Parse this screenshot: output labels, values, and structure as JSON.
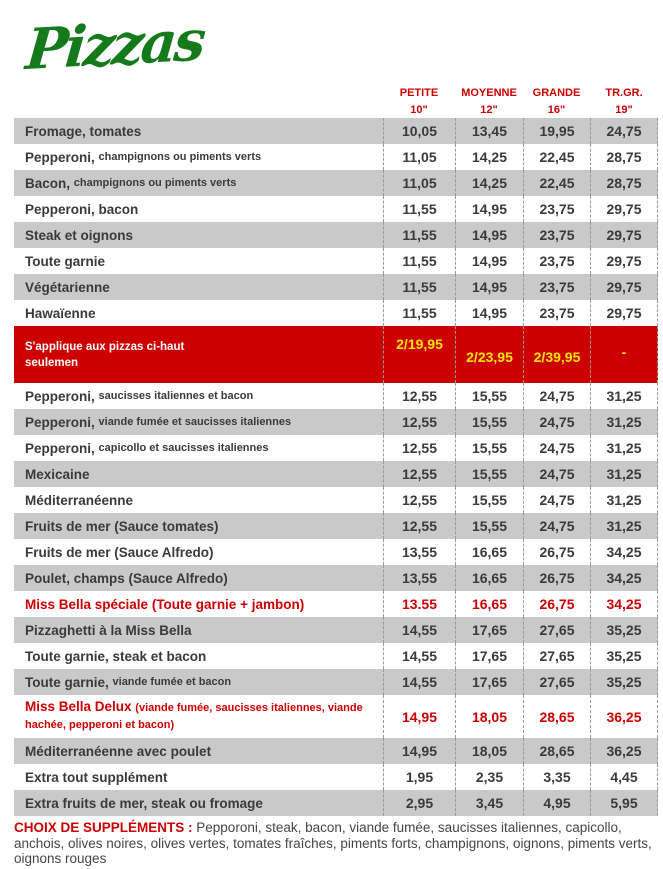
{
  "brand": {
    "logo_text": "Pizzas"
  },
  "colors": {
    "brand_green": "#157a1b",
    "accent_red": "#cc0000",
    "banner_yellow": "#ffe600",
    "row_gray": "#c9c9c9",
    "text_dark": "#3a3a3a"
  },
  "table": {
    "columns": [
      {
        "label": "PETITE",
        "size": "10\""
      },
      {
        "label": "MOYENNE",
        "size": "12\""
      },
      {
        "label": "GRANDE",
        "size": "16\""
      },
      {
        "label": "TR.GR.",
        "size": "19\""
      }
    ],
    "rows": [
      {
        "name": "Fromage, tomates",
        "desc": "",
        "prices": [
          "10,05",
          "13,45",
          "19,95",
          "24,75"
        ]
      },
      {
        "name": "Pepperoni, ",
        "desc": "champignons ou piments verts",
        "prices": [
          "11,05",
          "14,25",
          "22,45",
          "28,75"
        ]
      },
      {
        "name": "Bacon, ",
        "desc": "champignons ou piments verts",
        "prices": [
          "11,05",
          "14,25",
          "22,45",
          "28,75"
        ]
      },
      {
        "name": "Pepperoni, bacon",
        "desc": "",
        "prices": [
          "11,55",
          "14,95",
          "23,75",
          "29,75"
        ]
      },
      {
        "name": "Steak et oignons",
        "desc": "",
        "prices": [
          "11,55",
          "14,95",
          "23,75",
          "29,75"
        ]
      },
      {
        "name": "Toute garnie",
        "desc": "",
        "prices": [
          "11,55",
          "14,95",
          "23,75",
          "29,75"
        ]
      },
      {
        "name": "Végétarienne",
        "desc": "",
        "prices": [
          "11,55",
          "14,95",
          "23,75",
          "29,75"
        ]
      },
      {
        "name": "Hawaïenne",
        "desc": "",
        "prices": [
          "11,55",
          "14,95",
          "23,75",
          "29,75"
        ]
      },
      {
        "type": "banner",
        "line1": "S'applique aux pizzas ci-haut",
        "line2": "seulemen",
        "prices": [
          "2/19,95",
          "2/23,95",
          "2/39,95",
          "-"
        ]
      },
      {
        "name": "Pepperoni, ",
        "desc": "saucisses italiennes et bacon",
        "prices": [
          "12,55",
          "15,55",
          "24,75",
          "31,25"
        ]
      },
      {
        "name": "Pepperoni, ",
        "desc": "viande fumée et saucisses italiennes",
        "prices": [
          "12,55",
          "15,55",
          "24,75",
          "31,25"
        ]
      },
      {
        "name": "Pepperoni, ",
        "desc": "capicollo et saucisses italiennes",
        "prices": [
          "12,55",
          "15,55",
          "24,75",
          "31,25"
        ]
      },
      {
        "name": "Mexicaine",
        "desc": "",
        "prices": [
          "12,55",
          "15,55",
          "24,75",
          "31,25"
        ]
      },
      {
        "name": "Méditerranéenne",
        "desc": "",
        "prices": [
          "12,55",
          "15,55",
          "24,75",
          "31,25"
        ]
      },
      {
        "name": "Fruits de mer (Sauce tomates)",
        "desc": "",
        "prices": [
          "12,55",
          "15,55",
          "24,75",
          "31,25"
        ]
      },
      {
        "name": "Fruits de mer (Sauce Alfredo)",
        "desc": "",
        "prices": [
          "13,55",
          "16,65",
          "26,75",
          "34,25"
        ]
      },
      {
        "name": "Poulet, champs (Sauce Alfredo)",
        "desc": "",
        "prices": [
          "13,55",
          "16,65",
          "26,75",
          "34,25"
        ]
      },
      {
        "name": "Miss Bella spéciale (Toute garnie + jambon)",
        "desc": "",
        "red": true,
        "prices": [
          "13.55",
          "16,65",
          "26,75",
          "34,25"
        ]
      },
      {
        "name": "Pizzaghetti à la Miss Bella",
        "desc": "",
        "prices": [
          "14,55",
          "17,65",
          "27,65",
          "35,25"
        ]
      },
      {
        "name": "Toute garnie, steak et bacon",
        "desc": "",
        "prices": [
          "14,55",
          "17,65",
          "27,65",
          "35,25"
        ]
      },
      {
        "name": "Toute garnie, ",
        "desc": "viande fumée et bacon",
        "prices": [
          "14,55",
          "17,65",
          "27,65",
          "35,25"
        ]
      },
      {
        "name": "Miss Bella Delux ",
        "desc": "(viande fumée, saucisses italiennes, viande hachée, pepperoni et bacon)",
        "red": true,
        "tall": true,
        "prices": [
          "14,95",
          "18,05",
          "28,65",
          "36,25"
        ]
      },
      {
        "name": "Méditerranéenne avec poulet",
        "desc": "",
        "prices": [
          "14,95",
          "18,05",
          "28,65",
          "36,25"
        ]
      },
      {
        "name": "Extra tout supplément",
        "desc": "",
        "prices": [
          "1,95",
          "2,35",
          "3,35",
          "4,45"
        ]
      },
      {
        "name": "Extra fruits de mer, steak ou fromage",
        "desc": "",
        "prices": [
          "2,95",
          "3,45",
          "4,95",
          "5,95"
        ]
      }
    ]
  },
  "footer": {
    "label": "CHOIX DE SUPPLÉMENTS :",
    "text": " Pepporoni, steak, bacon, viande fumée, saucisses italiennes, capicollo, anchois, olives noires, olives vertes, tomates fraîches, piments forts, champignons, oignons, piments verts, oignons rouges"
  }
}
